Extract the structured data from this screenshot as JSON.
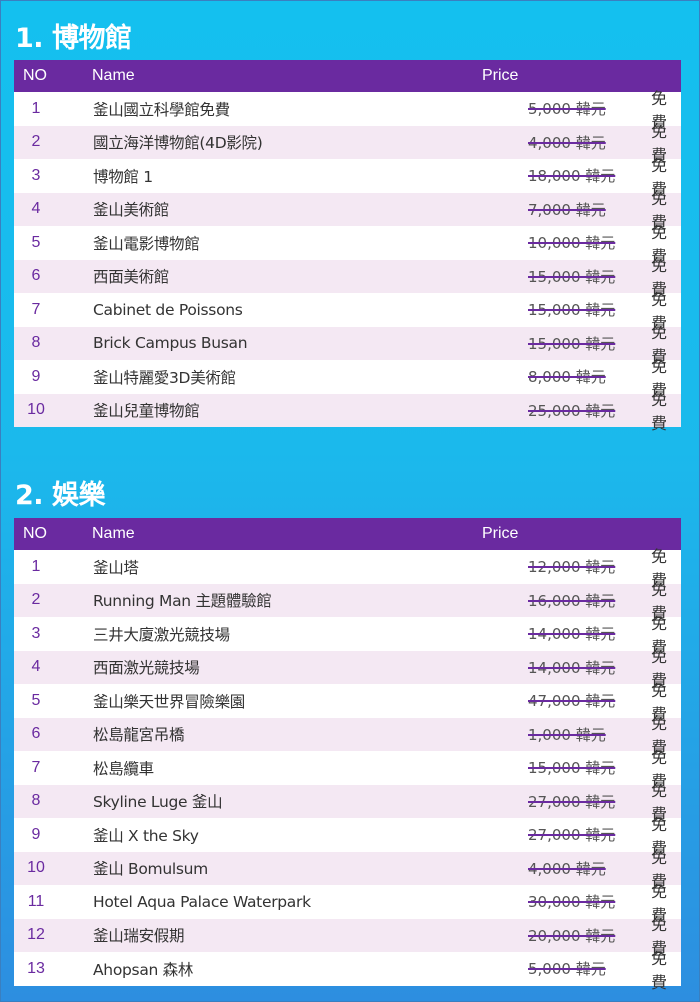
{
  "sections": [
    {
      "title": "1. 博物館",
      "headers": {
        "no": "NO",
        "name": "Name",
        "price": "Price"
      },
      "rows": [
        {
          "no": "1",
          "name": "釜山國立科學館免費",
          "price": "5,000 韓元",
          "free": "免費"
        },
        {
          "no": "2",
          "name": "國立海洋博物館(4D影院)",
          "price": "4,000 韓元",
          "free": "免費"
        },
        {
          "no": "3",
          "name": "博物館 1",
          "price": "18,000 韓元",
          "free": "免費"
        },
        {
          "no": "4",
          "name": "釜山美術館",
          "price": "7,000 韓元",
          "free": "免費"
        },
        {
          "no": "5",
          "name": "釜山電影博物館",
          "price": "10,000 韓元",
          "free": "免費"
        },
        {
          "no": "6",
          "name": "西面美術館",
          "price": "15,000 韓元",
          "free": "免費"
        },
        {
          "no": "7",
          "name": "Cabinet de Poissons",
          "price": "15,000 韓元",
          "free": "免費"
        },
        {
          "no": "8",
          "name": "Brick Campus Busan",
          "price": "15,000 韓元",
          "free": "免費"
        },
        {
          "no": "9",
          "name": "釜山特麗愛3D美術館",
          "price": "8,000 韓元",
          "free": "免費"
        },
        {
          "no": "10",
          "name": "釜山兒童博物館",
          "price": "25,000 韓元",
          "free": "免費"
        }
      ]
    },
    {
      "title": "2. 娛樂",
      "headers": {
        "no": "NO",
        "name": "Name",
        "price": "Price"
      },
      "rows": [
        {
          "no": "1",
          "name": "釜山塔",
          "price": "12,000 韓元",
          "free": "免費"
        },
        {
          "no": "2",
          "name": "Running Man 主題體驗館",
          "price": "16,000 韓元",
          "free": "免費"
        },
        {
          "no": "3",
          "name": "三井大廈激光競技場",
          "price": "14,000 韓元",
          "free": "免費"
        },
        {
          "no": "4",
          "name": "西面激光競技場",
          "price": "14,000 韓元",
          "free": "免費"
        },
        {
          "no": "5",
          "name": "釜山樂天世界冒險樂園",
          "price": "47,000 韓元",
          "free": "免費"
        },
        {
          "no": "6",
          "name": "松島龍宮吊橋",
          "price": "1,000 韓元",
          "free": "免費"
        },
        {
          "no": "7",
          "name": "松島纜車",
          "price": "15,000 韓元",
          "free": "免費"
        },
        {
          "no": "8",
          "name": "Skyline Luge 釜山",
          "price": "27,000 韓元",
          "free": "免費"
        },
        {
          "no": "9",
          "name": "釜山 X the Sky",
          "price": "27,000 韓元",
          "free": "免費"
        },
        {
          "no": "10",
          "name": "釜山 Bomulsum",
          "price": "4,000 韓元",
          "free": "免費"
        },
        {
          "no": "11",
          "name": "Hotel Aqua Palace Waterpark",
          "price": "30,000 韓元",
          "free": "免費"
        },
        {
          "no": "12",
          "name": "釜山瑞安假期",
          "price": "20,000 韓元",
          "free": "免費"
        },
        {
          "no": "13",
          "name": "Ahopsan 森林",
          "price": "5,000 韓元",
          "free": "免費"
        }
      ]
    }
  ]
}
